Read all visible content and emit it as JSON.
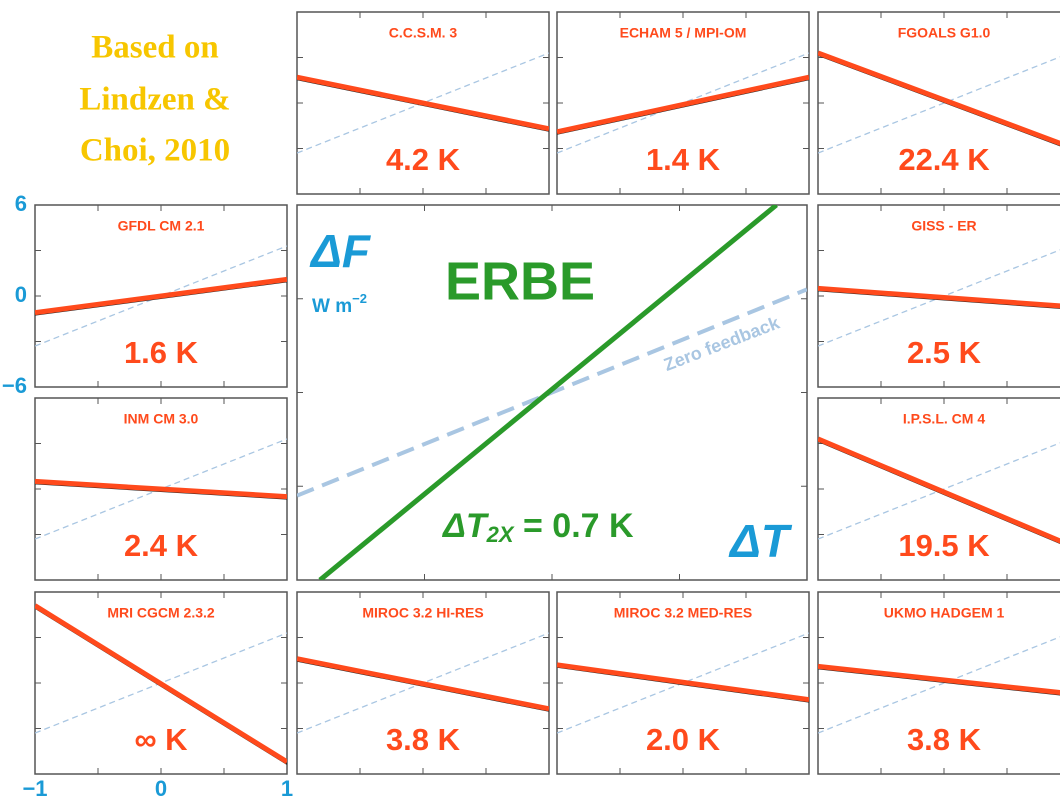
{
  "chart_data": {
    "type": "line",
    "note": [
      "Based on",
      "Lindzen &",
      "Choi, 2010"
    ],
    "xlim": [
      -1,
      1
    ],
    "ylim": [
      -6,
      6
    ],
    "xticks": [
      {
        "value": -1,
        "label": "−1"
      },
      0,
      1
    ],
    "yticks": [
      6,
      0,
      {
        "value": -6,
        "label": "−6"
      }
    ],
    "minor_xticks": [
      -0.5,
      0,
      0.5
    ],
    "minor_yticks": [
      -3,
      0,
      3
    ],
    "line_color": "#ff4a1c",
    "zero_feedback": {
      "name": "Zero feedback",
      "color": "#a9c6e2",
      "x": [
        -1,
        1
      ],
      "values": [
        -3.3,
        3.3
      ]
    },
    "panels": [
      {
        "name": "C.C.S.M. 3",
        "sensitivity": "4.2 K",
        "x": [
          -1,
          1
        ],
        "values": [
          1.7,
          -1.7
        ]
      },
      {
        "name": "ECHAM 5 / MPI-OM",
        "sensitivity": "1.4 K",
        "x": [
          -1,
          1
        ],
        "values": [
          -1.9,
          1.7
        ]
      },
      {
        "name": "FGOALS G1.0",
        "sensitivity": "22.4 K",
        "x": [
          -1,
          1
        ],
        "values": [
          3.3,
          -2.9
        ]
      },
      {
        "name": "GFDL CM 2.1",
        "sensitivity": "1.6 K",
        "x": [
          -1,
          1
        ],
        "values": [
          -1.1,
          1.1
        ]
      },
      {
        "name": "GISS - ER",
        "sensitivity": "2.5 K",
        "x": [
          -1,
          1
        ],
        "values": [
          0.5,
          -0.7
        ]
      },
      {
        "name": "INM CM 3.0",
        "sensitivity": "2.4 K",
        "x": [
          -1,
          1
        ],
        "values": [
          0.5,
          -0.5
        ]
      },
      {
        "name": "I.P.S.L. CM 4",
        "sensitivity": "19.5 K",
        "x": [
          -1,
          1
        ],
        "values": [
          3.3,
          -3.7
        ]
      },
      {
        "name": "MRI CGCM 2.3.2",
        "sensitivity": "∞ K",
        "x": [
          -1,
          1
        ],
        "values": [
          5.1,
          -5.2
        ]
      },
      {
        "name": "MIROC 3.2 HI-RES",
        "sensitivity": "3.8 K",
        "x": [
          -1,
          1
        ],
        "values": [
          1.6,
          -1.7
        ]
      },
      {
        "name": "MIROC 3.2 MED-RES",
        "sensitivity": "2.0 K",
        "x": [
          -1,
          1
        ],
        "values": [
          1.2,
          -1.1
        ]
      },
      {
        "name": "UKMO HADGEM 1",
        "sensitivity": "3.8 K",
        "x": [
          -1,
          1
        ],
        "values": [
          1.1,
          -0.7
        ]
      }
    ],
    "erbe": {
      "name": "ERBE",
      "color": "#2a9a2a",
      "y_label": "ΔF",
      "y_unit": "W m",
      "y_unit_exp": "−2",
      "x_label": "ΔT",
      "result_main": "ΔT",
      "result_sub": "2X",
      "result_rest": " = 0.7 K",
      "x": [
        -0.91,
        0.88
      ],
      "values": [
        -6,
        6
      ]
    }
  }
}
